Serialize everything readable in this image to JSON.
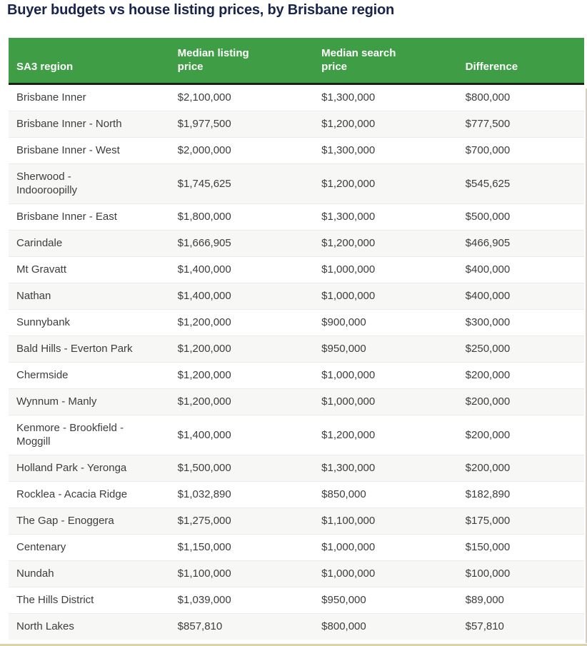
{
  "title": "Buyer budgets vs house listing prices, by Brisbane region",
  "colors": {
    "header_bg": "#3f9e45",
    "header_text": "#ffffff",
    "header_underline": "#1a231a",
    "title_text": "#19244d",
    "row_alt_bg": "#f7f7f6",
    "cell_text": "#3d3d3d",
    "bottom_rule": "#dad3ac"
  },
  "chart_data": {
    "type": "table",
    "title": "Buyer budgets vs house listing prices, by Brisbane region",
    "columns": [
      "SA3 region",
      "Median listing price",
      "Median search price",
      "Difference"
    ],
    "rows": [
      {
        "region": "Brisbane Inner",
        "listing_price": "$2,100,000",
        "search_price": "$1,300,000",
        "difference": "$800,000"
      },
      {
        "region": "Brisbane Inner - North",
        "listing_price": "$1,977,500",
        "search_price": "$1,200,000",
        "difference": "$777,500"
      },
      {
        "region": "Brisbane Inner - West",
        "listing_price": "$2,000,000",
        "search_price": "$1,300,000",
        "difference": "$700,000"
      },
      {
        "region": "Sherwood -\nIndooroopilly",
        "listing_price": "$1,745,625",
        "search_price": "$1,200,000",
        "difference": "$545,625"
      },
      {
        "region": "Brisbane Inner - East",
        "listing_price": "$1,800,000",
        "search_price": "$1,300,000",
        "difference": "$500,000"
      },
      {
        "region": "Carindale",
        "listing_price": "$1,666,905",
        "search_price": "$1,200,000",
        "difference": "$466,905"
      },
      {
        "region": "Mt Gravatt",
        "listing_price": "$1,400,000",
        "search_price": "$1,000,000",
        "difference": "$400,000"
      },
      {
        "region": "Nathan",
        "listing_price": "$1,400,000",
        "search_price": "$1,000,000",
        "difference": "$400,000"
      },
      {
        "region": "Sunnybank",
        "listing_price": "$1,200,000",
        "search_price": "$900,000",
        "difference": "$300,000"
      },
      {
        "region": "Bald Hills - Everton Park",
        "listing_price": "$1,200,000",
        "search_price": "$950,000",
        "difference": "$250,000"
      },
      {
        "region": "Chermside",
        "listing_price": "$1,200,000",
        "search_price": "$1,000,000",
        "difference": "$200,000"
      },
      {
        "region": "Wynnum - Manly",
        "listing_price": "$1,200,000",
        "search_price": "$1,000,000",
        "difference": "$200,000"
      },
      {
        "region": "Kenmore - Brookfield -\nMoggill",
        "listing_price": "$1,400,000",
        "search_price": "$1,200,000",
        "difference": "$200,000"
      },
      {
        "region": "Holland Park - Yeronga",
        "listing_price": "$1,500,000",
        "search_price": "$1,300,000",
        "difference": "$200,000"
      },
      {
        "region": "Rocklea - Acacia Ridge",
        "listing_price": "$1,032,890",
        "search_price": "$850,000",
        "difference": "$182,890"
      },
      {
        "region": "The Gap - Enoggera",
        "listing_price": "$1,275,000",
        "search_price": "$1,100,000",
        "difference": "$175,000"
      },
      {
        "region": "Centenary",
        "listing_price": "$1,150,000",
        "search_price": "$1,000,000",
        "difference": "$150,000"
      },
      {
        "region": "Nundah",
        "listing_price": "$1,100,000",
        "search_price": "$1,000,000",
        "difference": "$100,000"
      },
      {
        "region": "The Hills District",
        "listing_price": "$1,039,000",
        "search_price": "$950,000",
        "difference": "$89,000"
      },
      {
        "region": "North Lakes",
        "listing_price": "$857,810",
        "search_price": "$800,000",
        "difference": "$57,810"
      }
    ]
  }
}
